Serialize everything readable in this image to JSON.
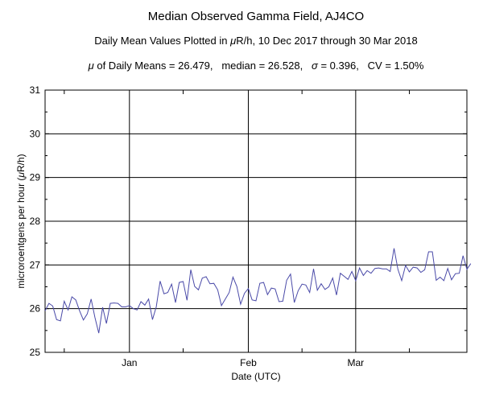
{
  "chart_data": {
    "type": "line",
    "title": "Median Observed Gamma Field, AJ4CO",
    "subtitle1_pre": "Daily Mean Values Plotted in ",
    "subtitle1_mu": "μ",
    "subtitle1_post": "R/h, 10 Dec 2017 through 30 Mar 2018",
    "subtitle2": {
      "mu": "μ",
      "mean_text": " of Daily Means = 26.479,   median = 26.528,   ",
      "sigma": "σ",
      "rest": " = 0.396,   CV = 1.50%"
    },
    "xlabel": "Date (UTC)",
    "ylabel_pre": "microroentgens per hour (",
    "ylabel_mu": "μ",
    "ylabel_post": "R/h)",
    "ylim": [
      25,
      31
    ],
    "yticks": [
      "25",
      "26",
      "27",
      "28",
      "29",
      "30",
      "31"
    ],
    "xlim": [
      "2017-12-10",
      "2018-03-30"
    ],
    "xticks": [
      {
        "date": "2018-01-01",
        "label": "Jan"
      },
      {
        "date": "2018-02-01",
        "label": "Feb"
      },
      {
        "date": "2018-03-01",
        "label": "Mar"
      }
    ],
    "grid": true,
    "line_color": "#4a4aa8",
    "values": [
      25.95,
      26.12,
      26.06,
      25.75,
      25.72,
      26.17,
      25.97,
      26.27,
      26.2,
      25.95,
      25.74,
      25.88,
      26.22,
      25.8,
      25.44,
      26.03,
      25.66,
      26.12,
      26.13,
      26.12,
      26.04,
      26.04,
      26.07,
      26.0,
      25.97,
      26.16,
      26.08,
      26.22,
      25.75,
      26.04,
      26.63,
      26.34,
      26.37,
      26.56,
      26.14,
      26.6,
      26.62,
      26.19,
      26.89,
      26.51,
      26.43,
      26.7,
      26.73,
      26.57,
      26.58,
      26.43,
      26.07,
      26.22,
      26.37,
      26.72,
      26.51,
      26.1,
      26.35,
      26.46,
      26.2,
      26.18,
      26.58,
      26.6,
      26.32,
      26.47,
      26.45,
      26.16,
      26.17,
      26.65,
      26.79,
      26.14,
      26.41,
      26.56,
      26.54,
      26.37,
      26.91,
      26.42,
      26.57,
      26.44,
      26.5,
      26.7,
      26.31,
      26.81,
      26.74,
      26.67,
      26.85,
      26.64,
      26.93,
      26.76,
      26.87,
      26.81,
      26.92,
      26.93,
      26.91,
      26.91,
      26.85,
      27.38,
      26.9,
      26.64,
      26.99,
      26.84,
      26.95,
      26.93,
      26.83,
      26.89,
      27.3,
      27.3,
      26.65,
      26.72,
      26.64,
      26.92,
      26.66,
      26.8,
      26.81,
      27.21,
      26.9,
      27.03
    ]
  }
}
